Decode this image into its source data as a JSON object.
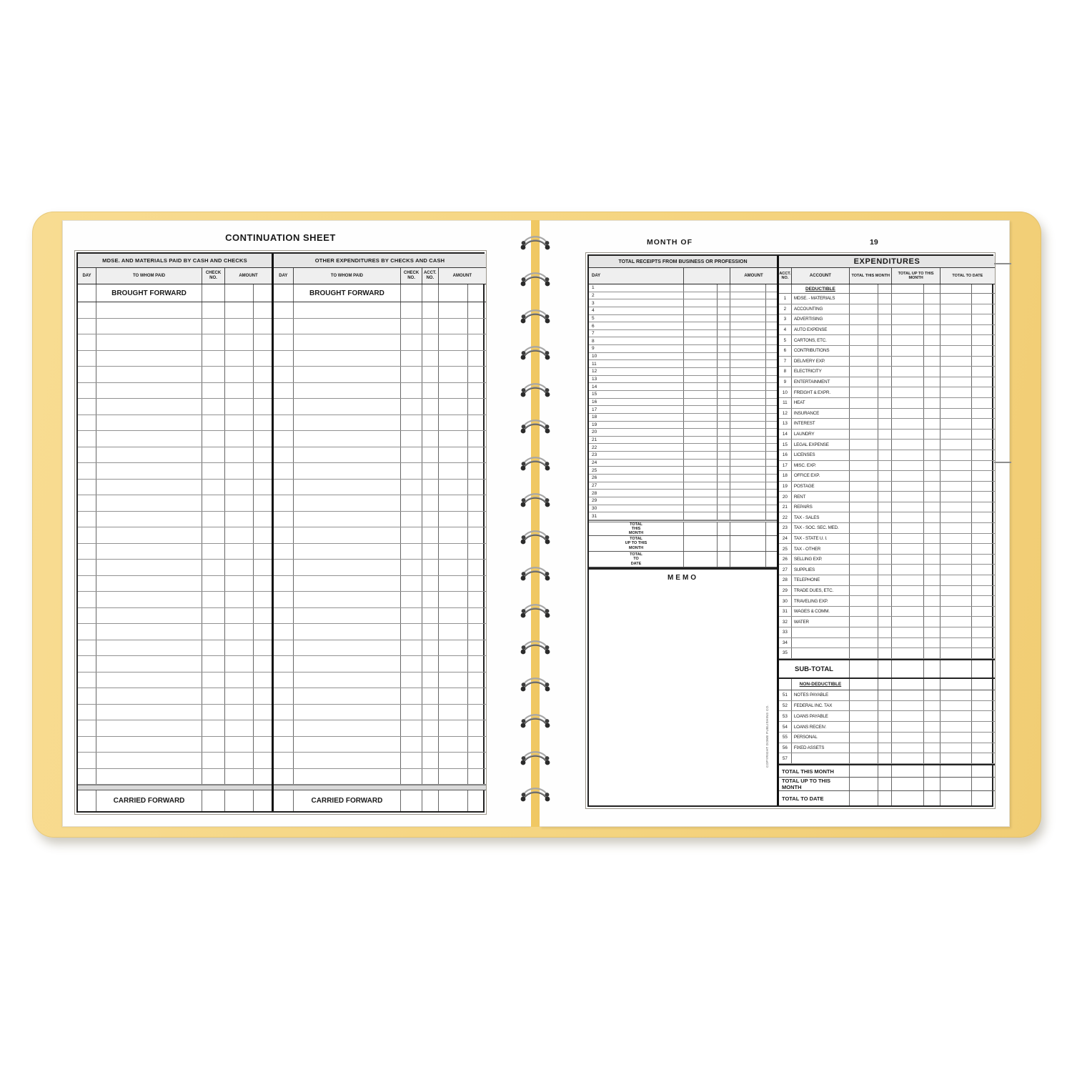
{
  "book": {
    "cover_color": "#f5d581",
    "spine_color": "#f0c863"
  },
  "left_page": {
    "title": "CONTINUATION SHEET",
    "brought_forward": "BROUGHT FORWARD",
    "carried_forward": "CARRIED FORWARD",
    "blank_row_count": 30,
    "sections": [
      {
        "title": "MDSE. AND MATERIALS PAID BY CASH AND CHECKS",
        "columns": [
          "DAY",
          "TO WHOM PAID",
          "CHECK NO.",
          "AMOUNT"
        ]
      },
      {
        "title": "OTHER EXPENDITURES BY CHECKS AND CASH",
        "columns": [
          "DAY",
          "TO WHOM PAID",
          "CHECK NO.",
          "ACCT. NO.",
          "AMOUNT"
        ]
      }
    ]
  },
  "right_page": {
    "month_label": "MONTH OF",
    "year_label": "19",
    "receipts": {
      "title": "TOTAL RECEIPTS FROM BUSINESS OR PROFESSION",
      "day_header": "DAY",
      "amount_header": "AMOUNT",
      "days": [
        "1",
        "2",
        "3",
        "4",
        "5",
        "6",
        "7",
        "8",
        "9",
        "10",
        "11",
        "12",
        "13",
        "14",
        "15",
        "16",
        "17",
        "18",
        "19",
        "20",
        "21",
        "22",
        "23",
        "24",
        "25",
        "26",
        "27",
        "28",
        "29",
        "30",
        "31"
      ],
      "total_rows": [
        [
          "TOTAL",
          "THIS",
          "MONTH"
        ],
        [
          "TOTAL",
          "UP TO THIS",
          "MONTH"
        ],
        [
          "TOTAL",
          "TO",
          "DATE"
        ]
      ],
      "memo_title": "MEMO"
    },
    "expenditures": {
      "title": "EXPENDITURES",
      "col_headers": [
        "ACCT. NO.",
        "ACCOUNT",
        "TOTAL THIS MONTH",
        "TOTAL UP TO THIS MONTH",
        "TOTAL TO DATE"
      ],
      "deductible_header": "DEDUCTIBLE",
      "deductible_accounts": [
        [
          "1",
          "MDSE. - MATERIALS"
        ],
        [
          "2",
          "ACCOUNTING"
        ],
        [
          "3",
          "ADVERTISING"
        ],
        [
          "4",
          "AUTO EXPENSE"
        ],
        [
          "5",
          "CARTONS, ETC."
        ],
        [
          "6",
          "CONTRIBUTIONS"
        ],
        [
          "7",
          "DELIVERY EXP."
        ],
        [
          "8",
          "ELECTRICITY"
        ],
        [
          "9",
          "ENTERTAINMENT"
        ],
        [
          "10",
          "FREIGHT & EXPR."
        ],
        [
          "11",
          "HEAT"
        ],
        [
          "12",
          "INSURANCE"
        ],
        [
          "13",
          "INTEREST"
        ],
        [
          "14",
          "LAUNDRY"
        ],
        [
          "15",
          "LEGAL EXPENSE"
        ],
        [
          "16",
          "LICENSES"
        ],
        [
          "17",
          "MISC. EXP."
        ],
        [
          "18",
          "OFFICE EXP."
        ],
        [
          "19",
          "POSTAGE"
        ],
        [
          "20",
          "RENT"
        ],
        [
          "21",
          "REPAIRS"
        ],
        [
          "22",
          "TAX - SALES"
        ],
        [
          "23",
          "TAX - SOC. SEC. MED."
        ],
        [
          "24",
          "TAX - STATE U. I."
        ],
        [
          "25",
          "TAX - OTHER"
        ],
        [
          "26",
          "SELLING EXP."
        ],
        [
          "27",
          "SUPPLIES"
        ],
        [
          "28",
          "TELEPHONE"
        ],
        [
          "29",
          "TRADE DUES, ETC."
        ],
        [
          "30",
          "TRAVELING EXP."
        ],
        [
          "31",
          "WAGES & COMM."
        ],
        [
          "32",
          "WATER"
        ],
        [
          "33",
          ""
        ],
        [
          "34",
          ""
        ],
        [
          "35",
          ""
        ]
      ],
      "subtotal_label": "SUB-TOTAL",
      "non_deductible_header": "NON-DEDUCTIBLE",
      "non_deductible_accounts": [
        [
          "51",
          "NOTES PAYABLE"
        ],
        [
          "52",
          "FEDERAL INC. TAX"
        ],
        [
          "53",
          "LOANS PAYABLE"
        ],
        [
          "54",
          "LOANS RECEIV."
        ],
        [
          "55",
          "PERSONAL"
        ],
        [
          "56",
          "FIXED ASSETS"
        ],
        [
          "57",
          ""
        ]
      ],
      "total_rows": [
        "TOTAL THIS MONTH",
        "TOTAL UP TO THIS MONTH",
        "TOTAL TO DATE"
      ],
      "copyright_text": "COPYRIGHT DOME PUBLISHING CO."
    }
  }
}
